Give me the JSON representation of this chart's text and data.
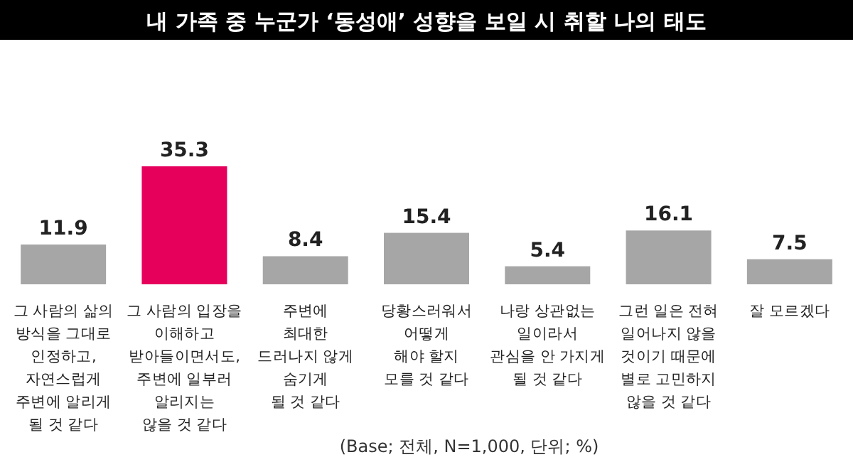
{
  "chart_data": {
    "type": "bar",
    "title": "내 가족 중 누군가 ‘동성애’ 성향을 보일 시 취할 나의 태도",
    "categories": [
      "그 사람의 삶의\n방식을 그대로\n인정하고,\n자연스럽게\n주변에 알리게\n될 것 같다",
      "그 사람의 입장을\n이해하고\n받아들이면서도,\n주변에 일부러\n알리지는\n않을 것 같다",
      "주변에\n최대한\n드러나지 않게\n숨기게\n될 것 같다",
      "당황스러워서\n어떻게\n해야 할지\n모를 것 같다",
      "나랑 상관없는\n일이라서\n관심을 안 가지게\n될 것 같다",
      "그런 일은 전혀\n일어나지 않을\n것이기 때문에\n별로 고민하지\n않을 것 같다",
      "잘 모르겠다"
    ],
    "values": [
      11.9,
      35.3,
      8.4,
      15.4,
      5.4,
      16.1,
      7.5
    ],
    "colors": [
      "#a6a6a6",
      "#e6005c",
      "#a6a6a6",
      "#a6a6a6",
      "#a6a6a6",
      "#a6a6a6",
      "#a6a6a6"
    ],
    "data_labels": true,
    "annotations": [
      "(Base; 전체, N=1,000, 단위; %)"
    ]
  }
}
